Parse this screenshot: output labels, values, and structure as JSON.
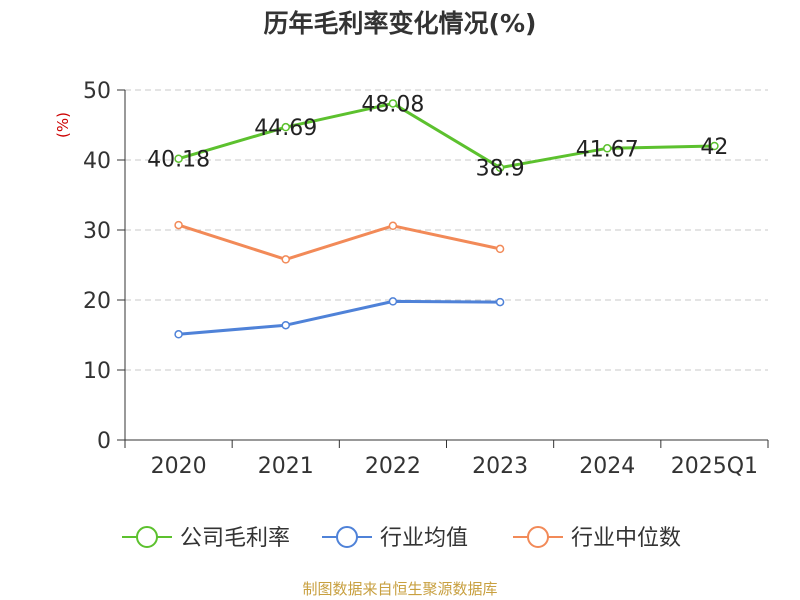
{
  "chart_data": {
    "type": "line",
    "title": "历年毛利率变化情况(%)",
    "ylabel": "(%)",
    "xlabel": "",
    "categories": [
      "2020",
      "2021",
      "2022",
      "2023",
      "2024",
      "2025Q1"
    ],
    "ylim": [
      0,
      50
    ],
    "yticks": [
      0,
      10,
      20,
      30,
      40,
      50
    ],
    "grid": true,
    "legend_position": "bottom",
    "series": [
      {
        "name": "公司毛利率",
        "color": "#5cc12e",
        "values": [
          40.18,
          44.69,
          48.08,
          38.9,
          41.67,
          42
        ],
        "labels": [
          "40.18",
          "44.69",
          "48.08",
          "38.9",
          "41.67",
          "42"
        ]
      },
      {
        "name": "行业均值",
        "color": "#4f82d8",
        "values": [
          15.1,
          16.4,
          19.8,
          19.7,
          null,
          null
        ],
        "labels": null
      },
      {
        "name": "行业中位数",
        "color": "#f28a58",
        "values": [
          30.7,
          25.8,
          30.6,
          27.3,
          null,
          null
        ],
        "labels": null
      }
    ]
  },
  "footer": {
    "source": "制图数据来自恒生聚源数据库"
  }
}
